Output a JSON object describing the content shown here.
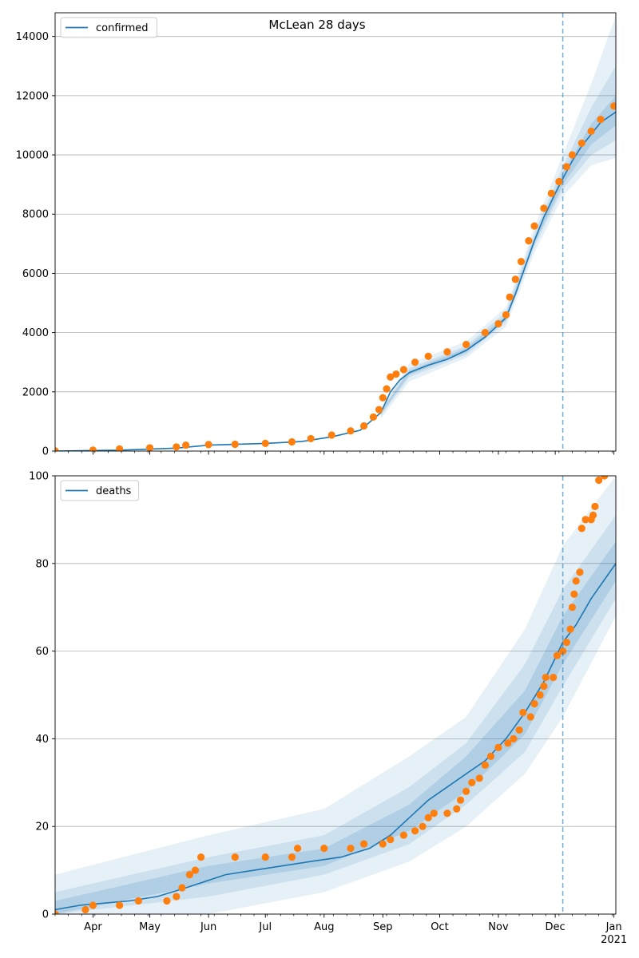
{
  "figure": {
    "title": "McLean 28 days"
  },
  "colors": {
    "model": "#1f77b4",
    "observed": "#ff7f0e",
    "band": "#1f77b4",
    "grid": "#b0b0b0",
    "forecast_line": "#1f77b4"
  },
  "chart_data": [
    {
      "type": "line",
      "name": "confirmed-panel",
      "legend": "confirmed",
      "legend_position": "top-left",
      "grid": "horizontal",
      "x_type": "date",
      "xlim": [
        "2020-03-12",
        "2021-01-02"
      ],
      "ylim": [
        0,
        14800
      ],
      "y_ticks": [
        0,
        2000,
        4000,
        6000,
        8000,
        10000,
        12000,
        14000
      ],
      "x_ticks_labeled": false,
      "forecast_start": "2020-12-05",
      "model_median": [
        [
          "2020-03-12",
          0
        ],
        [
          "2020-04-15",
          30
        ],
        [
          "2020-05-15",
          100
        ],
        [
          "2020-06-01",
          200
        ],
        [
          "2020-07-01",
          260
        ],
        [
          "2020-07-20",
          320
        ],
        [
          "2020-08-05",
          480
        ],
        [
          "2020-08-20",
          700
        ],
        [
          "2020-08-31",
          1300
        ],
        [
          "2020-09-05",
          2000
        ],
        [
          "2020-09-10",
          2400
        ],
        [
          "2020-09-15",
          2650
        ],
        [
          "2020-09-25",
          2900
        ],
        [
          "2020-10-05",
          3100
        ],
        [
          "2020-10-15",
          3400
        ],
        [
          "2020-10-25",
          3850
        ],
        [
          "2020-11-05",
          4500
        ],
        [
          "2020-11-10",
          5300
        ],
        [
          "2020-11-15",
          6200
        ],
        [
          "2020-11-20",
          7100
        ],
        [
          "2020-11-25",
          7900
        ],
        [
          "2020-12-01",
          8700
        ],
        [
          "2020-12-05",
          9200
        ],
        [
          "2020-12-10",
          9800
        ],
        [
          "2020-12-15",
          10300
        ],
        [
          "2020-12-20",
          10700
        ],
        [
          "2020-12-25",
          11100
        ],
        [
          "2021-01-02",
          11450
        ]
      ],
      "bands": [
        {
          "level": "outer",
          "lower": [
            [
              "2020-08-31",
              1100
            ],
            [
              "2020-09-15",
              2350
            ],
            [
              "2020-10-15",
              3150
            ],
            [
              "2020-11-05",
              4200
            ],
            [
              "2020-11-20",
              6700
            ],
            [
              "2020-12-05",
              8600
            ],
            [
              "2020-12-20",
              9650
            ],
            [
              "2021-01-02",
              9900
            ]
          ],
          "upper": [
            [
              "2020-08-31",
              1450
            ],
            [
              "2020-09-15",
              2950
            ],
            [
              "2020-10-15",
              3700
            ],
            [
              "2020-11-05",
              4850
            ],
            [
              "2020-11-20",
              7550
            ],
            [
              "2020-12-05",
              10000
            ],
            [
              "2020-12-20",
              12400
            ],
            [
              "2021-01-02",
              14700
            ]
          ]
        },
        {
          "level": "middle",
          "lower": [
            [
              "2020-08-31",
              1200
            ],
            [
              "2020-09-15",
              2500
            ],
            [
              "2020-10-15",
              3250
            ],
            [
              "2020-11-05",
              4350
            ],
            [
              "2020-11-20",
              6900
            ],
            [
              "2020-12-05",
              8850
            ],
            [
              "2020-12-20",
              10000
            ],
            [
              "2021-01-02",
              10500
            ]
          ],
          "upper": [
            [
              "2020-08-31",
              1380
            ],
            [
              "2020-09-15",
              2800
            ],
            [
              "2020-10-15",
              3550
            ],
            [
              "2020-11-05",
              4700
            ],
            [
              "2020-11-20",
              7350
            ],
            [
              "2020-12-05",
              9600
            ],
            [
              "2020-12-20",
              11600
            ],
            [
              "2021-01-02",
              13000
            ]
          ]
        },
        {
          "level": "inner",
          "lower": [
            [
              "2020-08-31",
              1260
            ],
            [
              "2020-09-15",
              2580
            ],
            [
              "2020-10-15",
              3330
            ],
            [
              "2020-11-05",
              4430
            ],
            [
              "2020-11-20",
              7000
            ],
            [
              "2020-12-05",
              9000
            ],
            [
              "2020-12-20",
              10350
            ],
            [
              "2021-01-02",
              11000
            ]
          ],
          "upper": [
            [
              "2020-08-31",
              1340
            ],
            [
              "2020-09-15",
              2720
            ],
            [
              "2020-10-15",
              3470
            ],
            [
              "2020-11-05",
              4580
            ],
            [
              "2020-11-20",
              7200
            ],
            [
              "2020-12-05",
              9400
            ],
            [
              "2020-12-20",
              11050
            ],
            [
              "2021-01-02",
              12000
            ]
          ]
        }
      ],
      "observed": [
        [
          "2020-03-12",
          5
        ],
        [
          "2020-04-01",
          30
        ],
        [
          "2020-04-15",
          70
        ],
        [
          "2020-05-01",
          110
        ],
        [
          "2020-05-15",
          140
        ],
        [
          "2020-05-20",
          200
        ],
        [
          "2020-06-01",
          220
        ],
        [
          "2020-06-15",
          230
        ],
        [
          "2020-07-01",
          260
        ],
        [
          "2020-07-15",
          310
        ],
        [
          "2020-07-25",
          420
        ],
        [
          "2020-08-05",
          540
        ],
        [
          "2020-08-15",
          680
        ],
        [
          "2020-08-22",
          850
        ],
        [
          "2020-08-27",
          1150
        ],
        [
          "2020-08-30",
          1400
        ],
        [
          "2020-09-01",
          1800
        ],
        [
          "2020-09-03",
          2100
        ],
        [
          "2020-09-05",
          2500
        ],
        [
          "2020-09-08",
          2600
        ],
        [
          "2020-09-12",
          2750
        ],
        [
          "2020-09-18",
          3000
        ],
        [
          "2020-09-25",
          3200
        ],
        [
          "2020-10-05",
          3350
        ],
        [
          "2020-10-15",
          3600
        ],
        [
          "2020-10-25",
          4000
        ],
        [
          "2020-11-01",
          4300
        ],
        [
          "2020-11-05",
          4600
        ],
        [
          "2020-11-07",
          5200
        ],
        [
          "2020-11-10",
          5800
        ],
        [
          "2020-11-13",
          6400
        ],
        [
          "2020-11-17",
          7100
        ],
        [
          "2020-11-20",
          7600
        ],
        [
          "2020-11-25",
          8200
        ],
        [
          "2020-11-29",
          8700
        ],
        [
          "2020-12-03",
          9100
        ],
        [
          "2020-12-07",
          9600
        ],
        [
          "2020-12-10",
          10000
        ],
        [
          "2020-12-15",
          10400
        ],
        [
          "2020-12-20",
          10800
        ],
        [
          "2020-12-25",
          11200
        ],
        [
          "2021-01-01",
          11650
        ]
      ]
    },
    {
      "type": "line",
      "name": "deaths-panel",
      "legend": "deaths",
      "legend_position": "top-left",
      "grid": "horizontal",
      "x_type": "date",
      "xlim": [
        "2020-03-12",
        "2021-01-02"
      ],
      "ylim": [
        0,
        100
      ],
      "y_ticks": [
        0,
        20,
        40,
        60,
        80,
        100
      ],
      "x_ticks": [
        {
          "date": "2020-04-01",
          "label": "Apr"
        },
        {
          "date": "2020-05-01",
          "label": "May"
        },
        {
          "date": "2020-06-01",
          "label": "Jun"
        },
        {
          "date": "2020-07-01",
          "label": "Jul"
        },
        {
          "date": "2020-08-01",
          "label": "Aug"
        },
        {
          "date": "2020-09-01",
          "label": "Sep"
        },
        {
          "date": "2020-10-01",
          "label": "Oct"
        },
        {
          "date": "2020-11-01",
          "label": "Nov"
        },
        {
          "date": "2020-12-01",
          "label": "Dec"
        },
        {
          "date": "2021-01-01",
          "label": "Jan",
          "sublabel": "2021"
        }
      ],
      "forecast_start": "2020-12-05",
      "model_median": [
        [
          "2020-03-12",
          1
        ],
        [
          "2020-03-25",
          2
        ],
        [
          "2020-04-20",
          3
        ],
        [
          "2020-05-05",
          4
        ],
        [
          "2020-05-20",
          6
        ],
        [
          "2020-06-10",
          9
        ],
        [
          "2020-06-25",
          10
        ],
        [
          "2020-07-10",
          11
        ],
        [
          "2020-07-25",
          12
        ],
        [
          "2020-08-10",
          13
        ],
        [
          "2020-08-25",
          15
        ],
        [
          "2020-09-05",
          18
        ],
        [
          "2020-09-15",
          22
        ],
        [
          "2020-09-25",
          26
        ],
        [
          "2020-10-05",
          29
        ],
        [
          "2020-10-15",
          32
        ],
        [
          "2020-10-25",
          35
        ],
        [
          "2020-11-05",
          40
        ],
        [
          "2020-11-15",
          46
        ],
        [
          "2020-11-25",
          53
        ],
        [
          "2020-12-05",
          62
        ],
        [
          "2020-12-12",
          66
        ],
        [
          "2020-12-20",
          72
        ],
        [
          "2021-01-02",
          80
        ]
      ],
      "bands": [
        {
          "level": "outer",
          "lower": [
            [
              "2020-03-12",
              0
            ],
            [
              "2020-06-01",
              0
            ],
            [
              "2020-08-01",
              5
            ],
            [
              "2020-09-15",
              12
            ],
            [
              "2020-10-15",
              20
            ],
            [
              "2020-11-15",
              32
            ],
            [
              "2020-12-05",
              45
            ],
            [
              "2021-01-02",
              68
            ]
          ],
          "upper": [
            [
              "2020-03-12",
              9
            ],
            [
              "2020-06-01",
              18
            ],
            [
              "2020-08-01",
              24
            ],
            [
              "2020-09-15",
              36
            ],
            [
              "2020-10-15",
              45
            ],
            [
              "2020-11-15",
              65
            ],
            [
              "2020-12-05",
              84
            ],
            [
              "2021-01-02",
              100
            ]
          ]
        },
        {
          "level": "middle",
          "lower": [
            [
              "2020-03-12",
              0
            ],
            [
              "2020-06-01",
              4
            ],
            [
              "2020-08-01",
              9
            ],
            [
              "2020-09-15",
              16
            ],
            [
              "2020-10-15",
              25
            ],
            [
              "2020-11-15",
              37
            ],
            [
              "2020-12-05",
              52
            ],
            [
              "2021-01-02",
              72
            ]
          ],
          "upper": [
            [
              "2020-03-12",
              5
            ],
            [
              "2020-06-01",
              13
            ],
            [
              "2020-08-01",
              18
            ],
            [
              "2020-09-15",
              29
            ],
            [
              "2020-10-15",
              39
            ],
            [
              "2020-11-15",
              57
            ],
            [
              "2020-12-05",
              74
            ],
            [
              "2021-01-02",
              91
            ]
          ]
        },
        {
          "level": "inner",
          "lower": [
            [
              "2020-03-12",
              0
            ],
            [
              "2020-06-01",
              7
            ],
            [
              "2020-08-01",
              11
            ],
            [
              "2020-09-15",
              19
            ],
            [
              "2020-10-15",
              28
            ],
            [
              "2020-11-15",
              41
            ],
            [
              "2020-12-05",
              57
            ],
            [
              "2021-01-02",
              76
            ]
          ],
          "upper": [
            [
              "2020-03-12",
              3
            ],
            [
              "2020-06-01",
              11
            ],
            [
              "2020-08-01",
              15
            ],
            [
              "2020-09-15",
              25
            ],
            [
              "2020-10-15",
              36
            ],
            [
              "2020-11-15",
              51
            ],
            [
              "2020-12-05",
              68
            ],
            [
              "2021-01-02",
              85
            ]
          ]
        }
      ],
      "observed": [
        [
          "2020-03-12",
          0
        ],
        [
          "2020-03-28",
          1
        ],
        [
          "2020-04-01",
          2
        ],
        [
          "2020-04-15",
          2
        ],
        [
          "2020-04-25",
          3
        ],
        [
          "2020-05-10",
          3
        ],
        [
          "2020-05-15",
          4
        ],
        [
          "2020-05-18",
          6
        ],
        [
          "2020-05-22",
          9
        ],
        [
          "2020-05-25",
          10
        ],
        [
          "2020-05-28",
          13
        ],
        [
          "2020-06-15",
          13
        ],
        [
          "2020-07-01",
          13
        ],
        [
          "2020-07-15",
          13
        ],
        [
          "2020-07-18",
          15
        ],
        [
          "2020-08-01",
          15
        ],
        [
          "2020-08-15",
          15
        ],
        [
          "2020-08-22",
          16
        ],
        [
          "2020-09-01",
          16
        ],
        [
          "2020-09-05",
          17
        ],
        [
          "2020-09-12",
          18
        ],
        [
          "2020-09-18",
          19
        ],
        [
          "2020-09-22",
          20
        ],
        [
          "2020-09-25",
          22
        ],
        [
          "2020-09-28",
          23
        ],
        [
          "2020-10-05",
          23
        ],
        [
          "2020-10-10",
          24
        ],
        [
          "2020-10-12",
          26
        ],
        [
          "2020-10-15",
          28
        ],
        [
          "2020-10-18",
          30
        ],
        [
          "2020-10-22",
          31
        ],
        [
          "2020-10-25",
          34
        ],
        [
          "2020-10-28",
          36
        ],
        [
          "2020-11-01",
          38
        ],
        [
          "2020-11-06",
          39
        ],
        [
          "2020-11-09",
          40
        ],
        [
          "2020-11-12",
          42
        ],
        [
          "2020-11-14",
          46
        ],
        [
          "2020-11-18",
          45
        ],
        [
          "2020-11-20",
          48
        ],
        [
          "2020-11-23",
          50
        ],
        [
          "2020-11-25",
          52
        ],
        [
          "2020-11-26",
          54
        ],
        [
          "2020-11-30",
          54
        ],
        [
          "2020-12-02",
          59
        ],
        [
          "2020-12-05",
          60
        ],
        [
          "2020-12-07",
          62
        ],
        [
          "2020-12-09",
          65
        ],
        [
          "2020-12-10",
          70
        ],
        [
          "2020-12-11",
          73
        ],
        [
          "2020-12-12",
          76
        ],
        [
          "2020-12-14",
          78
        ],
        [
          "2020-12-15",
          88
        ],
        [
          "2020-12-17",
          90
        ],
        [
          "2020-12-20",
          90
        ],
        [
          "2020-12-21",
          91
        ],
        [
          "2020-12-22",
          93
        ],
        [
          "2020-12-24",
          99
        ],
        [
          "2020-12-27",
          100
        ]
      ]
    }
  ]
}
